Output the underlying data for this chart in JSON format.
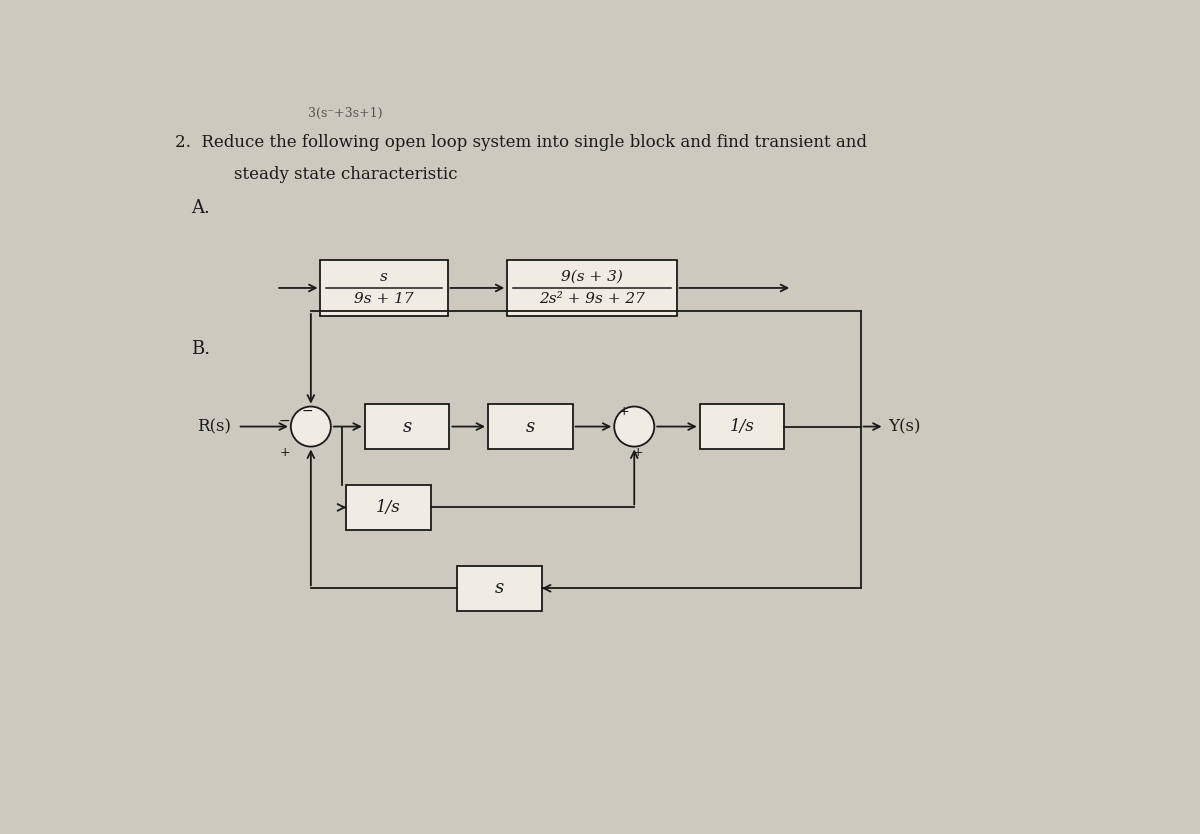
{
  "title_top": "3(s⁻+3s+1)",
  "title_line1": "2.  Reduce the following open loop system into single block and find transient and",
  "title_line2": "steady state characteristic",
  "section_A": "A.",
  "section_B": "B.",
  "block_A1_top": "s",
  "block_A1_bot": "9s + 17",
  "block_A2_top": "9(s + 3)",
  "block_A2_bot": "2s² + 9s + 27",
  "block_B1": "s",
  "block_B2": "s",
  "block_B3": "1/s",
  "block_B4": "1/s",
  "block_B5": "s",
  "label_Rs": "R(s)",
  "label_Ys": "Y(s)",
  "bg_color": "#cdc9bf",
  "box_color": "#f0ece4",
  "line_color": "#1a1a1a",
  "text_color": "#1a1a1a"
}
